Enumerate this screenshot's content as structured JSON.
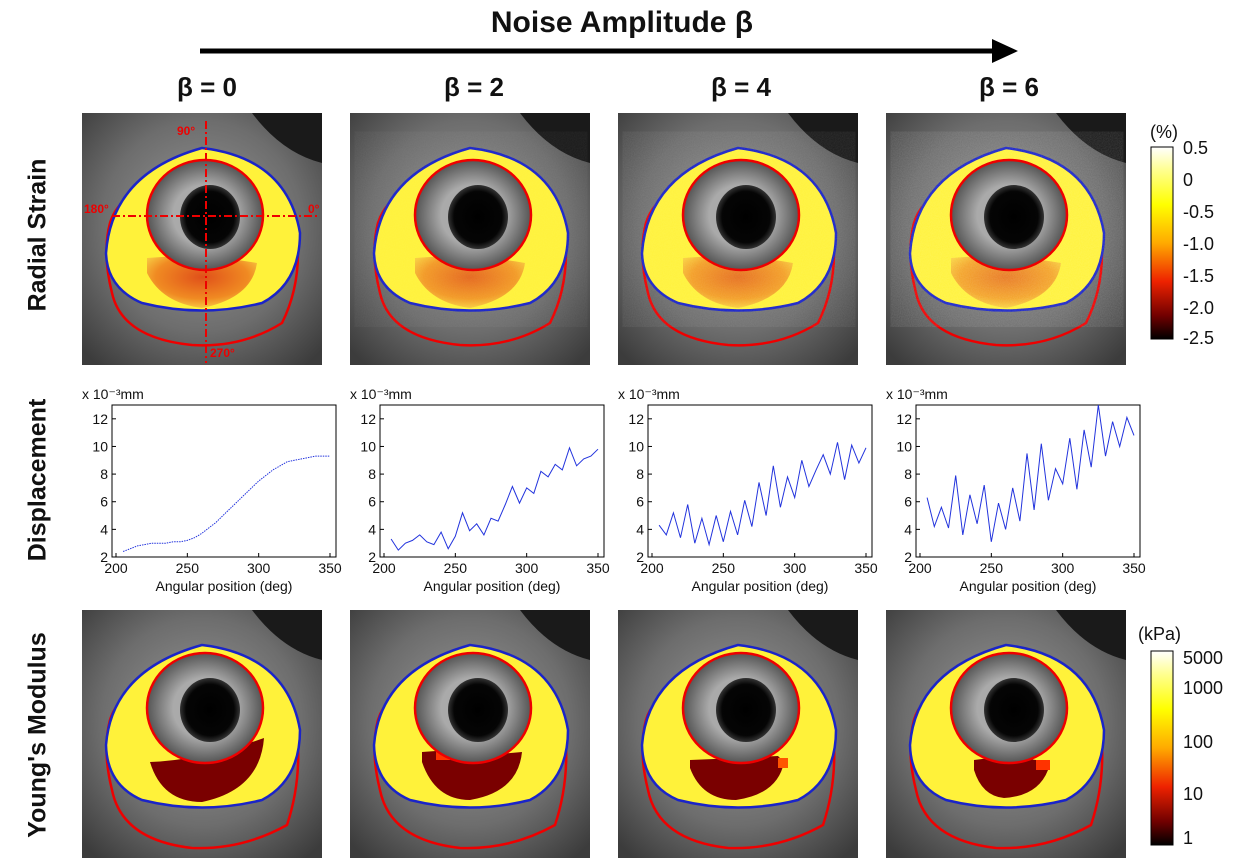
{
  "figure": {
    "title": "Noise Amplitude β",
    "columns": [
      "β = 0",
      "β = 2",
      "β = 4",
      "β = 6"
    ],
    "row_labels": [
      "Radial Strain",
      "Displacement",
      "Young's Modulus"
    ],
    "angle_labels": {
      "a90": "90°",
      "a180": "180°",
      "a0": "0°",
      "a270": "270°"
    }
  },
  "strain_colorbar": {
    "unit": "(%)",
    "ticks": [
      "0.5",
      "0",
      "-0.5",
      "-1.0",
      "-1.5",
      "-2.0",
      "-2.5"
    ]
  },
  "modulus_colorbar": {
    "unit": "(kPa)",
    "ticks": [
      "5000",
      "1000",
      "100",
      "10",
      "1"
    ]
  },
  "chart_data": [
    {
      "type": "line",
      "panel": "β = 0",
      "unit_label": "x 10⁻³mm",
      "xlabel": "Angular position (deg)",
      "xlim": [
        200,
        350
      ],
      "ylim": [
        2,
        13
      ],
      "x_ticks": [
        "200",
        "250",
        "300",
        "350"
      ],
      "y_ticks": [
        "2",
        "4",
        "6",
        "8",
        "10",
        "12"
      ],
      "x": [
        205,
        210,
        215,
        220,
        225,
        230,
        235,
        240,
        245,
        250,
        255,
        260,
        265,
        270,
        275,
        280,
        285,
        290,
        295,
        300,
        305,
        310,
        315,
        320,
        325,
        330,
        335,
        340,
        345,
        350
      ],
      "y": [
        2.4,
        2.6,
        2.8,
        2.9,
        3.0,
        3.0,
        3.0,
        3.1,
        3.1,
        3.2,
        3.4,
        3.7,
        4.1,
        4.5,
        5.0,
        5.5,
        6.0,
        6.5,
        7.0,
        7.5,
        7.9,
        8.3,
        8.6,
        8.9,
        9.0,
        9.1,
        9.2,
        9.3,
        9.3,
        9.3
      ]
    },
    {
      "type": "line",
      "panel": "β = 2",
      "unit_label": "x 10⁻³mm",
      "xlabel": "Angular position (deg)",
      "xlim": [
        200,
        350
      ],
      "ylim": [
        2,
        13
      ],
      "x_ticks": [
        "200",
        "250",
        "300",
        "350"
      ],
      "y_ticks": [
        "2",
        "4",
        "6",
        "8",
        "10",
        "12"
      ],
      "x": [
        205,
        210,
        215,
        220,
        225,
        230,
        235,
        240,
        245,
        250,
        255,
        260,
        265,
        270,
        275,
        280,
        285,
        290,
        295,
        300,
        305,
        310,
        315,
        320,
        325,
        330,
        335,
        340,
        345,
        350
      ],
      "y": [
        3.3,
        2.5,
        3.0,
        3.2,
        3.6,
        3.1,
        2.9,
        3.8,
        2.6,
        3.5,
        5.2,
        3.9,
        4.4,
        3.6,
        4.8,
        4.6,
        5.8,
        7.1,
        5.9,
        7.0,
        6.6,
        8.2,
        7.8,
        8.7,
        8.3,
        9.9,
        8.6,
        9.1,
        9.3,
        9.8
      ]
    },
    {
      "type": "line",
      "panel": "β = 4",
      "unit_label": "x 10⁻³mm",
      "xlabel": "Angular position (deg)",
      "xlim": [
        200,
        350
      ],
      "ylim": [
        2,
        13
      ],
      "x_ticks": [
        "200",
        "250",
        "300",
        "350"
      ],
      "y_ticks": [
        "2",
        "4",
        "6",
        "8",
        "10",
        "12"
      ],
      "x": [
        205,
        210,
        215,
        220,
        225,
        230,
        235,
        240,
        245,
        250,
        255,
        260,
        265,
        270,
        275,
        280,
        285,
        290,
        295,
        300,
        305,
        310,
        315,
        320,
        325,
        330,
        335,
        340,
        345,
        350
      ],
      "y": [
        4.3,
        3.6,
        5.2,
        3.4,
        5.8,
        3.0,
        4.8,
        2.9,
        5.0,
        3.1,
        5.3,
        3.6,
        6.1,
        4.2,
        7.4,
        5.0,
        8.6,
        5.6,
        7.8,
        6.3,
        9.0,
        7.1,
        8.3,
        9.4,
        8.0,
        10.3,
        7.6,
        10.1,
        8.8,
        9.9
      ]
    },
    {
      "type": "line",
      "panel": "β = 6",
      "unit_label": "x 10⁻³mm",
      "xlabel": "Angular position (deg)",
      "xlim": [
        200,
        350
      ],
      "ylim": [
        2,
        13
      ],
      "x_ticks": [
        "200",
        "250",
        "300",
        "350"
      ],
      "y_ticks": [
        "2",
        "4",
        "6",
        "8",
        "10",
        "12"
      ],
      "x": [
        205,
        210,
        215,
        220,
        225,
        230,
        235,
        240,
        245,
        250,
        255,
        260,
        265,
        270,
        275,
        280,
        285,
        290,
        295,
        300,
        305,
        310,
        315,
        320,
        325,
        330,
        335,
        340,
        345,
        350
      ],
      "y": [
        6.3,
        4.2,
        5.6,
        4.1,
        7.9,
        3.6,
        6.5,
        4.4,
        7.2,
        3.1,
        5.9,
        4.0,
        7.0,
        4.6,
        9.5,
        5.4,
        10.2,
        6.1,
        8.4,
        7.3,
        10.6,
        6.9,
        11.2,
        8.5,
        13.0,
        9.3,
        11.8,
        10.0,
        12.1,
        10.8
      ]
    }
  ]
}
